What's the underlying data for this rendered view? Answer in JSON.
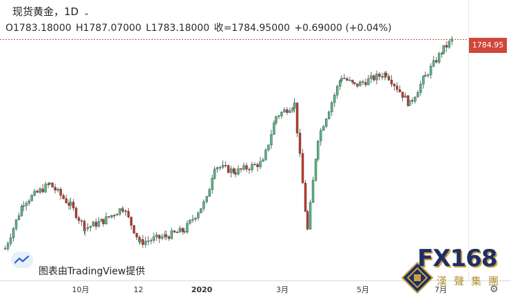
{
  "header": {
    "title": "现货黄金，1D",
    "open": "O1783.18000",
    "high": "H1787.07000",
    "low": "L1783.18000",
    "close": "收=1784.95000",
    "change": "+0.69000 (+0.04%)"
  },
  "price_tag": "1784.95",
  "credit": "图表由TradingView提供",
  "settings_icon": "gear-icon",
  "watermark": {
    "brand": "FX168",
    "subtitle": "漢聲集團"
  },
  "colors": {
    "up": "#53b987",
    "down": "#c0392b",
    "price_line": "#d0473b"
  },
  "chart_data": {
    "type": "candlestick",
    "title": "现货黄金，1D",
    "xlabel": "",
    "ylabel": "",
    "x_ticks": [
      "10月",
      "12",
      "2020",
      "3月",
      "5月",
      "7月"
    ],
    "ylim": [
      1440,
      1800
    ],
    "grid": false,
    "last_price": 1784.95,
    "series": [
      {
        "date": "2019-08-01",
        "close": 1445
      },
      {
        "date": "2019-08-15",
        "close": 1520
      },
      {
        "date": "2019-09-04",
        "close": 1550
      },
      {
        "date": "2019-09-20",
        "close": 1515
      },
      {
        "date": "2019-10-01",
        "close": 1478
      },
      {
        "date": "2019-10-15",
        "close": 1490
      },
      {
        "date": "2019-10-30",
        "close": 1512
      },
      {
        "date": "2019-11-12",
        "close": 1455
      },
      {
        "date": "2019-12-02",
        "close": 1465
      },
      {
        "date": "2019-12-16",
        "close": 1475
      },
      {
        "date": "2020-01-02",
        "close": 1525
      },
      {
        "date": "2020-01-08",
        "close": 1580
      },
      {
        "date": "2020-01-24",
        "close": 1570
      },
      {
        "date": "2020-02-14",
        "close": 1585
      },
      {
        "date": "2020-02-24",
        "close": 1660
      },
      {
        "date": "2020-03-09",
        "close": 1680
      },
      {
        "date": "2020-03-19",
        "close": 1475
      },
      {
        "date": "2020-03-27",
        "close": 1625
      },
      {
        "date": "2020-04-14",
        "close": 1725
      },
      {
        "date": "2020-04-24",
        "close": 1710
      },
      {
        "date": "2020-05-18",
        "close": 1730
      },
      {
        "date": "2020-06-05",
        "close": 1680
      },
      {
        "date": "2020-06-17",
        "close": 1725
      },
      {
        "date": "2020-07-01",
        "close": 1770
      },
      {
        "date": "2020-07-08",
        "close": 1785
      }
    ]
  }
}
